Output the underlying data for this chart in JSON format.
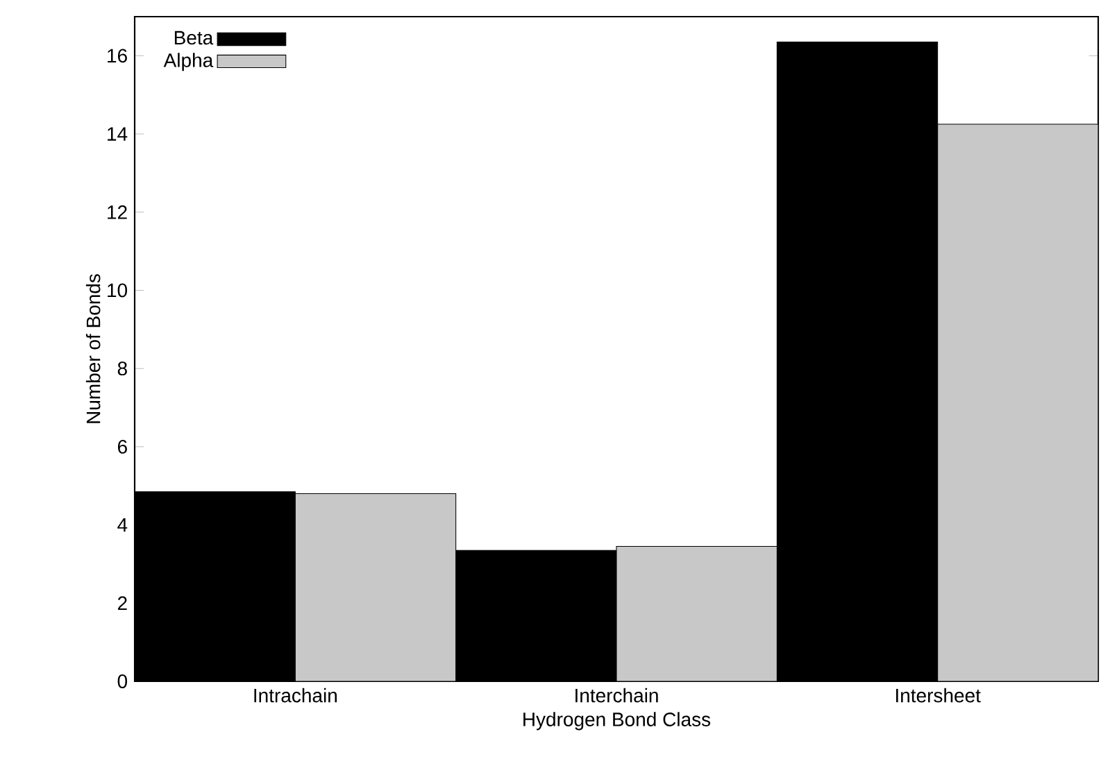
{
  "chart_data": {
    "type": "bar",
    "xlabel": "Hydrogen Bond Class",
    "ylabel": "Number of Bonds",
    "categories": [
      "Intrachain",
      "Interchain",
      "Intersheet"
    ],
    "series": [
      {
        "name": "Beta",
        "color": "#000000",
        "values": [
          4.85,
          3.35,
          16.35
        ]
      },
      {
        "name": "Alpha",
        "color": "#c8c8c8",
        "values": [
          4.8,
          3.45,
          14.25
        ]
      }
    ],
    "ylim": [
      0,
      17
    ],
    "yticks": [
      0,
      2,
      4,
      6,
      8,
      10,
      12,
      14,
      16
    ],
    "grid": false,
    "legend": "top left"
  }
}
